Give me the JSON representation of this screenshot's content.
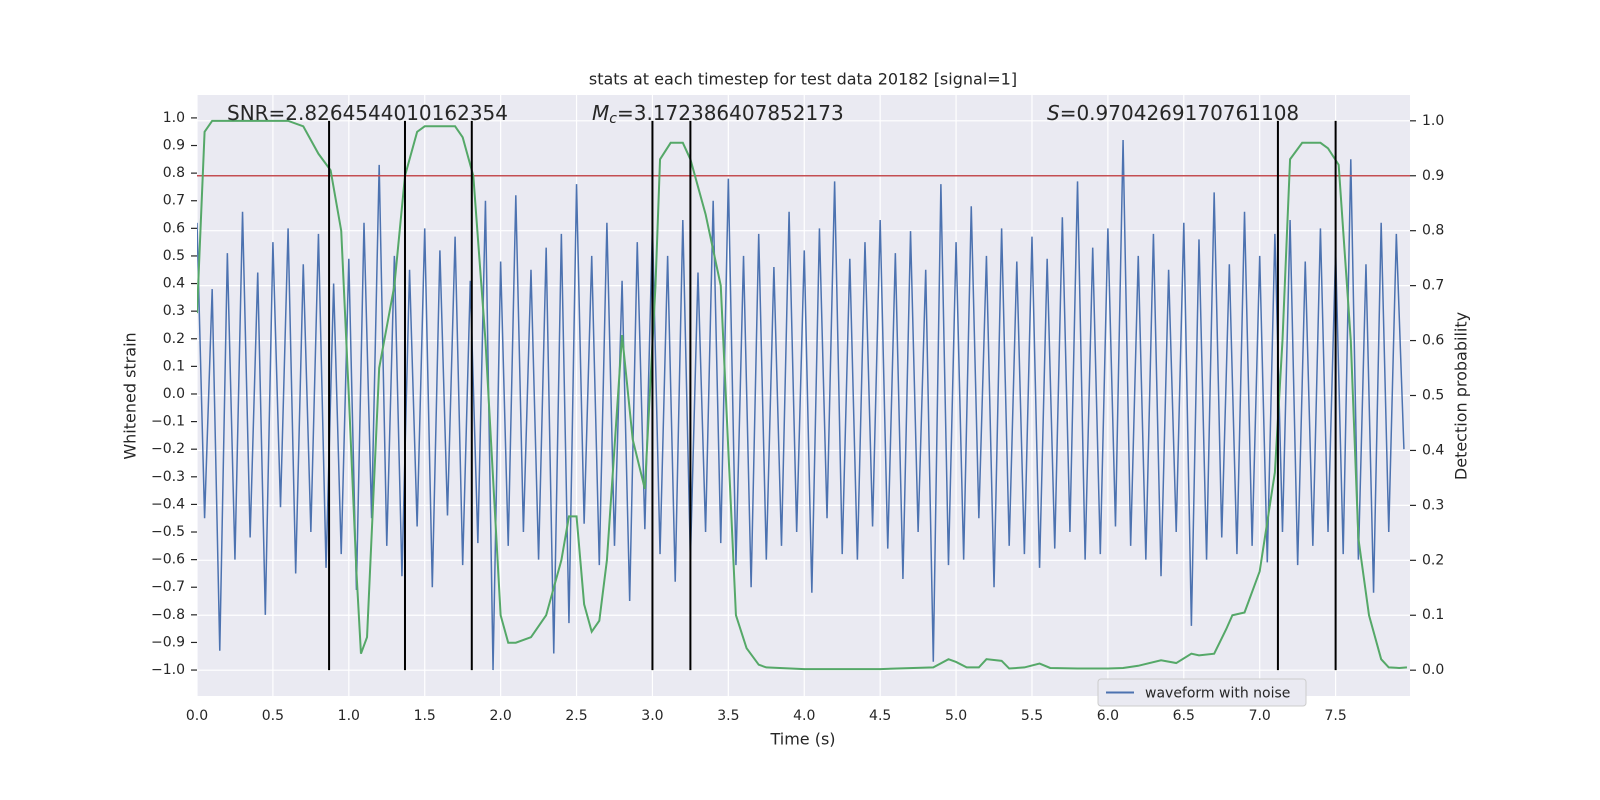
{
  "chart_data": {
    "type": "line",
    "title": "stats at each timestep for test data 20182 [signal=1]",
    "xlabel": "Time (s)",
    "ylabel": "Whitened strain",
    "y2label": "Detection probability",
    "xlim": [
      0,
      7.99
    ],
    "ylim": [
      -1.094,
      1.083
    ],
    "y2lim": [
      -0.047,
      1.047
    ],
    "xticks": [
      {
        "value": 0,
        "label": "0.0"
      },
      0.5,
      {
        "value": 1,
        "label": "1.0"
      },
      1.5,
      {
        "value": 2,
        "label": "2.0"
      },
      2.5,
      {
        "value": 3,
        "label": "3.0"
      },
      3.5,
      {
        "value": 4,
        "label": "4.0"
      },
      4.5,
      {
        "value": 5,
        "label": "5.0"
      },
      5.5,
      {
        "value": 6,
        "label": "6.0"
      },
      6.5,
      {
        "value": 7,
        "label": "7.0"
      },
      7.5
    ],
    "yticks": [
      {
        "value": -1,
        "label": "−1.0"
      },
      {
        "value": -0.9,
        "label": "−0.9"
      },
      {
        "value": -0.8,
        "label": "−0.8"
      },
      {
        "value": -0.7,
        "label": "−0.7"
      },
      {
        "value": -0.6,
        "label": "−0.6"
      },
      {
        "value": -0.5,
        "label": "−0.5"
      },
      {
        "value": -0.4,
        "label": "−0.4"
      },
      {
        "value": -0.3,
        "label": "−0.3"
      },
      {
        "value": -0.2,
        "label": "−0.2"
      },
      {
        "value": -0.1,
        "label": "−0.1"
      },
      {
        "value": 0,
        "label": "0.0"
      },
      0.1,
      0.2,
      0.3,
      0.4,
      0.5,
      0.6,
      0.7,
      0.8,
      0.9,
      {
        "value": 1,
        "label": "1.0"
      }
    ],
    "y2ticks": [
      {
        "value": 0,
        "label": "0.0"
      },
      0.1,
      0.2,
      0.3,
      0.4,
      0.5,
      0.6,
      0.7,
      0.8,
      0.9,
      {
        "value": 1,
        "label": "1.0"
      }
    ],
    "grid": true,
    "legend": "lower right",
    "annotations": [
      {
        "text": "SNR=2.8264544010162354"
      },
      {
        "symbol": "M",
        "subscript": "c",
        "text": "=3.172386407852173"
      },
      {
        "symbol": "S",
        "text": "=0.9704269170761108"
      }
    ],
    "threshold": {
      "value": 0.9,
      "color": "#c44e52",
      "axis": "y2"
    },
    "vlines": {
      "x": [
        0.87,
        1.37,
        1.81,
        3.0,
        3.25,
        7.12,
        7.5
      ],
      "color": "#000000",
      "range": [
        0,
        1
      ],
      "axis": "y2"
    },
    "series": [
      {
        "name": "waveform with noise",
        "color": "#4c72b0",
        "x": [
          0,
          0.05,
          0.1,
          0.15,
          0.2,
          0.25,
          0.3,
          0.35,
          0.4,
          0.45,
          0.5,
          0.55,
          0.6,
          0.65,
          0.7,
          0.75,
          0.8,
          0.85,
          0.9,
          0.95,
          1,
          1.05,
          1.1,
          1.15,
          1.2,
          1.25,
          1.3,
          1.35,
          1.4,
          1.45,
          1.5,
          1.55,
          1.6,
          1.65,
          1.7,
          1.75,
          1.8,
          1.85,
          1.9,
          1.95,
          2,
          2.05,
          2.1,
          2.15,
          2.2,
          2.25,
          2.3,
          2.35,
          2.4,
          2.45,
          2.5,
          2.55,
          2.6,
          2.65,
          2.7,
          2.75,
          2.8,
          2.85,
          2.9,
          2.95,
          3,
          3.05,
          3.1,
          3.15,
          3.2,
          3.25,
          3.3,
          3.35,
          3.4,
          3.45,
          3.5,
          3.55,
          3.6,
          3.65,
          3.7,
          3.75,
          3.8,
          3.85,
          3.9,
          3.95,
          4,
          4.05,
          4.1,
          4.15,
          4.2,
          4.25,
          4.3,
          4.35,
          4.4,
          4.45,
          4.5,
          4.55,
          4.6,
          4.65,
          4.7,
          4.75,
          4.8,
          4.85,
          4.9,
          4.95,
          5,
          5.05,
          5.1,
          5.15,
          5.2,
          5.25,
          5.3,
          5.35,
          5.4,
          5.45,
          5.5,
          5.55,
          5.6,
          5.65,
          5.7,
          5.75,
          5.8,
          5.85,
          5.9,
          5.95,
          6,
          6.05,
          6.1,
          6.15,
          6.2,
          6.25,
          6.3,
          6.35,
          6.4,
          6.45,
          6.5,
          6.55,
          6.6,
          6.65,
          6.7,
          6.75,
          6.8,
          6.85,
          6.9,
          6.95,
          7,
          7.05,
          7.1,
          7.15,
          7.2,
          7.25,
          7.3,
          7.35,
          7.4,
          7.45,
          7.5,
          7.55,
          7.6,
          7.65,
          7.7,
          7.75,
          7.8,
          7.85,
          7.9,
          7.95
        ],
        "values": [
          0.62,
          -0.45,
          0.38,
          -0.93,
          0.51,
          -0.6,
          0.66,
          -0.52,
          0.44,
          -0.8,
          0.55,
          -0.41,
          0.6,
          -0.65,
          0.47,
          -0.5,
          0.58,
          -0.63,
          0.4,
          -0.58,
          0.49,
          -0.71,
          0.62,
          -0.45,
          0.83,
          -0.55,
          0.5,
          -0.66,
          0.45,
          -0.48,
          0.6,
          -0.7,
          0.52,
          -0.44,
          0.57,
          -0.62,
          0.41,
          -0.54,
          0.7,
          -1.0,
          0.48,
          -0.55,
          0.72,
          -0.5,
          0.45,
          -0.6,
          0.53,
          -0.94,
          0.58,
          -0.83,
          0.76,
          -0.47,
          0.5,
          -0.62,
          0.62,
          -0.55,
          0.41,
          -0.75,
          0.55,
          -0.49,
          0.61,
          -0.58,
          0.5,
          -0.68,
          0.63,
          -0.6,
          0.44,
          -0.5,
          0.7,
          -0.54,
          0.78,
          -0.62,
          0.5,
          -0.7,
          0.58,
          -0.6,
          0.46,
          -0.55,
          0.66,
          -0.5,
          0.52,
          -0.72,
          0.6,
          -0.45,
          0.77,
          -0.58,
          0.49,
          -0.6,
          0.55,
          -0.48,
          0.63,
          -0.56,
          0.51,
          -0.67,
          0.59,
          -0.5,
          0.45,
          -0.97,
          0.76,
          -0.62,
          0.55,
          -0.6,
          0.68,
          -0.45,
          0.5,
          -0.7,
          0.6,
          -0.55,
          0.48,
          -0.58,
          0.57,
          -0.63,
          0.49,
          -0.56,
          0.64,
          -0.5,
          0.77,
          -0.6,
          0.53,
          -0.58,
          0.6,
          -0.48,
          0.92,
          -0.55,
          0.5,
          -0.6,
          0.58,
          -0.66,
          0.45,
          -0.5,
          0.62,
          -0.84,
          0.56,
          -0.6,
          0.73,
          -0.52,
          0.47,
          -0.58,
          0.66,
          -0.55,
          0.5,
          -0.61,
          0.58,
          -0.5,
          0.63,
          -0.62,
          0.48,
          -0.55,
          0.6,
          -0.5,
          0.52,
          -0.58,
          0.85,
          -0.6,
          0.47,
          -0.72,
          0.62,
          -0.5,
          0.58,
          -0.2
        ]
      },
      {
        "color": "#55a868",
        "axis": "y2",
        "x": [
          0,
          0.05,
          0.1,
          0.2,
          0.4,
          0.6,
          0.7,
          0.8,
          0.88,
          0.95,
          1,
          1.05,
          1.08,
          1.12,
          1.2,
          1.3,
          1.37,
          1.45,
          1.5,
          1.7,
          1.75,
          1.82,
          1.9,
          2,
          2.05,
          2.1,
          2.2,
          2.3,
          2.4,
          2.45,
          2.5,
          2.55,
          2.6,
          2.65,
          2.7,
          2.8,
          2.87,
          2.95,
          3.02,
          3.05,
          3.12,
          3.2,
          3.25,
          3.35,
          3.45,
          3.55,
          3.62,
          3.7,
          3.75,
          4,
          4.5,
          4.85,
          4.95,
          5,
          5.07,
          5.15,
          5.2,
          5.3,
          5.35,
          5.45,
          5.55,
          5.62,
          5.8,
          6,
          6.1,
          6.2,
          6.35,
          6.45,
          6.55,
          6.6,
          6.7,
          6.78,
          6.82,
          6.9,
          7,
          7.1,
          7.15,
          7.2,
          7.28,
          7.4,
          7.45,
          7.52,
          7.6,
          7.65,
          7.72,
          7.8,
          7.85,
          7.92,
          7.97
        ],
        "values": [
          0.65,
          0.98,
          1.0,
          1.0,
          1.0,
          1.0,
          0.99,
          0.94,
          0.91,
          0.8,
          0.5,
          0.18,
          0.03,
          0.06,
          0.55,
          0.7,
          0.9,
          0.98,
          0.99,
          0.99,
          0.97,
          0.9,
          0.6,
          0.1,
          0.05,
          0.05,
          0.06,
          0.1,
          0.2,
          0.28,
          0.28,
          0.12,
          0.07,
          0.09,
          0.2,
          0.61,
          0.42,
          0.33,
          0.7,
          0.93,
          0.96,
          0.96,
          0.93,
          0.83,
          0.7,
          0.1,
          0.04,
          0.01,
          0.005,
          0.002,
          0.002,
          0.005,
          0.02,
          0.015,
          0.005,
          0.005,
          0.02,
          0.017,
          0.003,
          0.005,
          0.012,
          0.004,
          0.003,
          0.003,
          0.004,
          0.008,
          0.018,
          0.013,
          0.03,
          0.027,
          0.03,
          0.075,
          0.1,
          0.105,
          0.18,
          0.36,
          0.6,
          0.93,
          0.96,
          0.96,
          0.95,
          0.92,
          0.6,
          0.24,
          0.1,
          0.02,
          0.005,
          0.004,
          0.005
        ]
      }
    ]
  }
}
